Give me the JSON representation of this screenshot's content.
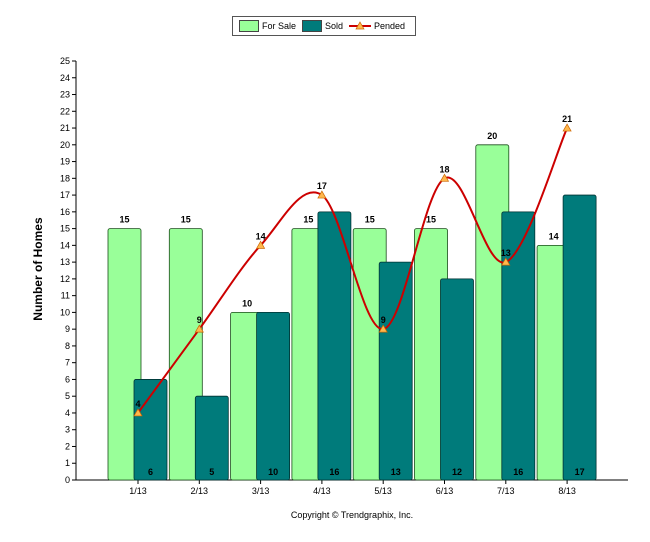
{
  "chart_data": {
    "type": "bar",
    "categories": [
      "1/13",
      "2/13",
      "3/13",
      "4/13",
      "5/13",
      "6/13",
      "7/13",
      "8/13"
    ],
    "series": [
      {
        "name": "For Sale",
        "type": "bar",
        "color": "#99ff99",
        "values": [
          15,
          15,
          10,
          15,
          15,
          15,
          20,
          14
        ]
      },
      {
        "name": "Sold",
        "type": "bar",
        "color": "#007b7b",
        "values": [
          6,
          5,
          10,
          16,
          13,
          12,
          16,
          17
        ]
      },
      {
        "name": "Pended",
        "type": "line",
        "color": "#cc0000",
        "marker_color": "#ffb84d",
        "values": [
          4,
          9,
          14,
          17,
          9,
          18,
          13,
          21
        ]
      }
    ],
    "ylabel": "Number of Homes",
    "xlabel": "",
    "ylim": [
      0,
      25
    ],
    "y_ticks": [
      0,
      1,
      2,
      3,
      4,
      5,
      6,
      7,
      8,
      9,
      10,
      11,
      12,
      13,
      14,
      15,
      16,
      17,
      18,
      19,
      20,
      21,
      22,
      23,
      24,
      25
    ],
    "legend_position": "top-center",
    "grid": false
  },
  "legend": {
    "for_sale": "For Sale",
    "sold": "Sold",
    "pended": "Pended"
  },
  "footer": {
    "copyright": "Copyright © Trendgraphix, Inc."
  }
}
